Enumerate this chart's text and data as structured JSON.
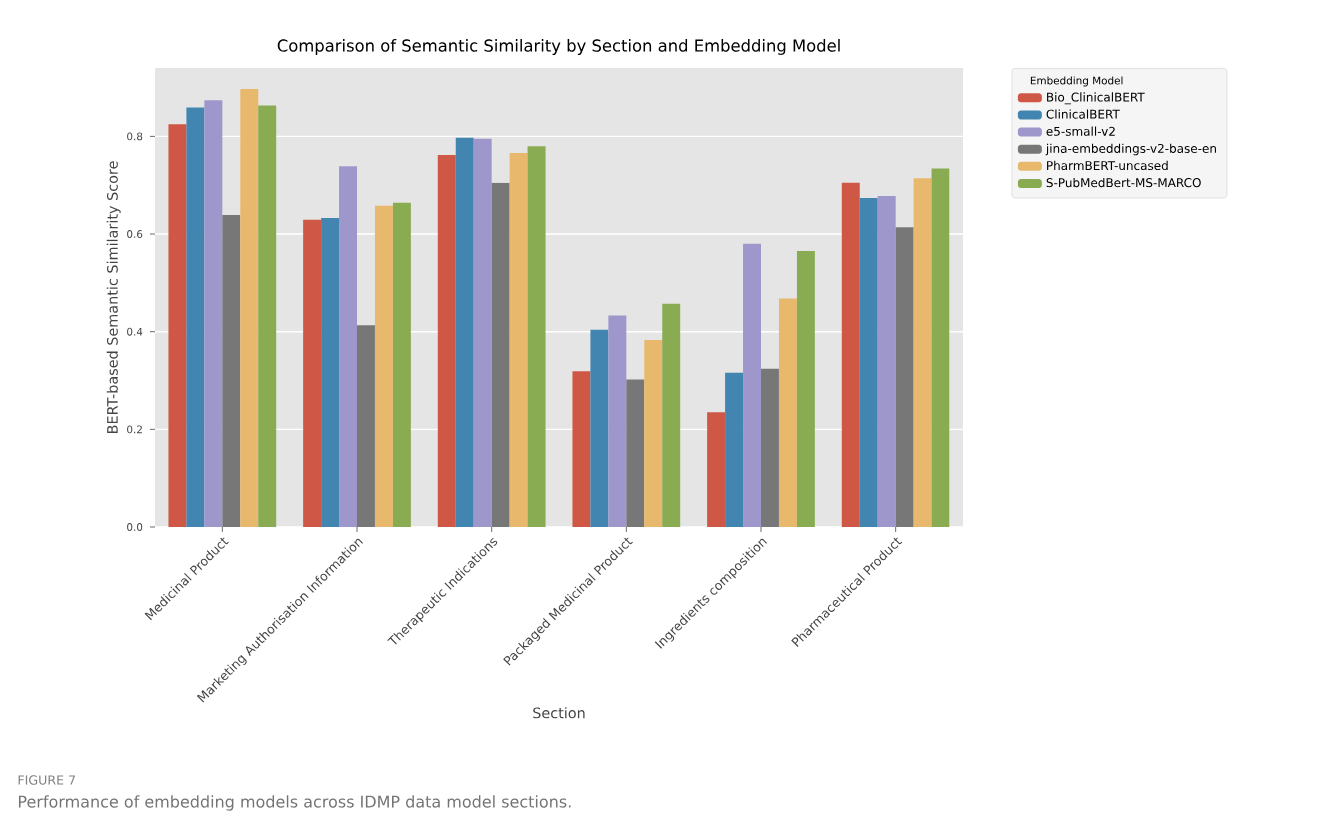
{
  "chart_data": {
    "type": "bar",
    "title": "Comparison of Semantic Similarity by Section and Embedding Model",
    "xlabel": "Section",
    "ylabel": "BERT-based Semantic Similarity Score",
    "legend_title": "Embedding Model",
    "categories": [
      "Medicinal Product",
      "Marketing Authorisation Information",
      "Therapeutic Indications",
      "Packaged Medicinal Product",
      "Ingredients composition",
      "Pharmaceutical Product"
    ],
    "series": [
      {
        "name": "Bio_ClinicalBERT",
        "color": "#cf5745",
        "values": [
          0.825,
          0.629,
          0.762,
          0.319,
          0.235,
          0.705
        ]
      },
      {
        "name": "ClinicalBERT",
        "color": "#4285b0",
        "values": [
          0.859,
          0.633,
          0.797,
          0.404,
          0.316,
          0.674
        ]
      },
      {
        "name": "e5-small-v2",
        "color": "#9e97cc",
        "values": [
          0.874,
          0.739,
          0.795,
          0.433,
          0.58,
          0.678
        ]
      },
      {
        "name": "jina-embeddings-v2-base-en",
        "color": "#777777",
        "values": [
          0.639,
          0.413,
          0.705,
          0.302,
          0.324,
          0.614
        ]
      },
      {
        "name": "PharmBERT-uncased",
        "color": "#e8b96d",
        "values": [
          0.897,
          0.658,
          0.766,
          0.383,
          0.468,
          0.714
        ]
      },
      {
        "name": "S-PubMedBert-MS-MARCO",
        "color": "#89ab52",
        "values": [
          0.863,
          0.664,
          0.78,
          0.457,
          0.565,
          0.734
        ]
      }
    ],
    "ylim": [
      0,
      0.94
    ],
    "yticks": [
      {
        "value": 0,
        "label": "0.0"
      },
      {
        "value": 0.2,
        "label": "0.2"
      },
      {
        "value": 0.4,
        "label": "0.4"
      },
      {
        "value": 0.6,
        "label": "0.6"
      },
      {
        "value": 0.8,
        "label": "0.8"
      }
    ],
    "grid": "y",
    "legend": "top right",
    "annotations": [
      "FIGURE 7",
      "Performance of embedding models across IDMP data model sections."
    ]
  }
}
